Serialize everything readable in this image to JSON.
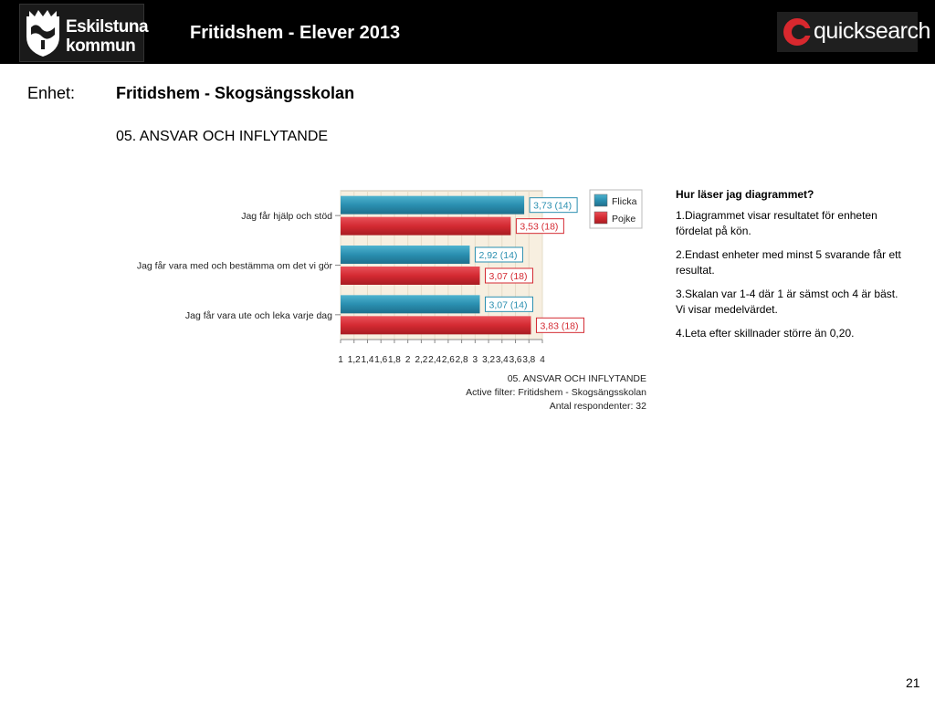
{
  "header": {
    "logo_line1": "Eskilstuna",
    "logo_line2": "kommun",
    "title": "Fritidshem - Elever 2013",
    "brand": "quicksearch"
  },
  "unit": {
    "label": "Enhet:",
    "name": "Fritidshem - Skogsängsskolan"
  },
  "section_title": "05. ANSVAR OCH INFLYTANDE",
  "help": {
    "title": "Hur läser jag diagrammet?",
    "items": [
      "1.Diagrammet visar resultatet för enheten fördelat på kön.",
      "2.Endast enheter med minst  5 svarande får ett resultat.",
      "3.Skalan var 1-4 där 1 är sämst och 4 är bäst. Vi visar medelvärdet.",
      "4.Leta efter skillnader större än 0,20."
    ]
  },
  "page_number": "21",
  "chart_data": {
    "type": "bar",
    "orientation": "horizontal",
    "categories": [
      "Jag får hjälp och stöd",
      "Jag får vara med och bestämma om det vi gör",
      "Jag får vara ute och leka varje dag"
    ],
    "series": [
      {
        "name": "Flicka",
        "values": [
          3.73,
          2.92,
          3.07
        ],
        "counts": [
          14,
          14,
          14
        ],
        "labels": [
          "3,73 (14)",
          "2,92 (14)",
          "3,07 (14)"
        ],
        "color": "#2a8fb0"
      },
      {
        "name": "Pojke",
        "values": [
          3.53,
          3.07,
          3.83
        ],
        "counts": [
          18,
          18,
          18
        ],
        "labels": [
          "3,53 (18)",
          "3,07 (18)",
          "3,83 (18)"
        ],
        "color": "#d42a32"
      }
    ],
    "xlim": [
      1,
      4
    ],
    "xticks": [
      "1",
      "1,2",
      "1,4",
      "1,6",
      "1,8",
      "2",
      "2,2",
      "2,4",
      "2,6",
      "2,8",
      "3",
      "3,2",
      "3,4",
      "3,6",
      "3,8",
      "4"
    ],
    "legend_position": "top-right",
    "footer": [
      "05. ANSVAR OCH INFLYTANDE",
      "Active filter: Fritidshem - Skogsängsskolan",
      "Antal respondenter: 32"
    ],
    "plot_background": "#f7efe0"
  }
}
